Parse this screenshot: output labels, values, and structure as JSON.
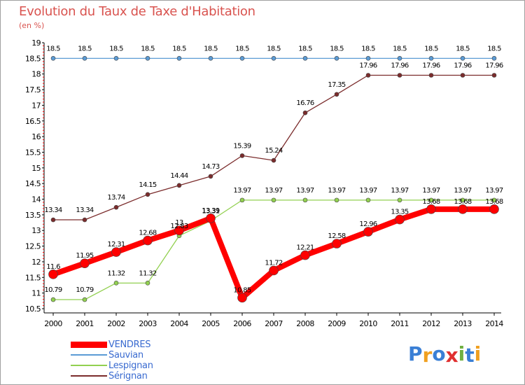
{
  "header": {
    "title": "Evolution du Taux de Taxe d'Habitation",
    "unit": "(en %)"
  },
  "chart_data": {
    "type": "line",
    "title": "Evolution du Taux de Taxe d'Habitation",
    "ylabel": "(en %)",
    "xlabel": "",
    "x": [
      "2000",
      "2001",
      "2002",
      "2003",
      "2004",
      "2005",
      "2006",
      "2007",
      "2008",
      "2009",
      "2010",
      "2011",
      "2012",
      "2013",
      "2014"
    ],
    "yticks": [
      "10.5",
      "11",
      "11.5",
      "12",
      "12.5",
      "13",
      "13.5",
      "14",
      "14.5",
      "15",
      "15.5",
      "16",
      "16.5",
      "17",
      "17.5",
      "18",
      "18.5",
      "19"
    ],
    "ylim": [
      10.5,
      19
    ],
    "grid": false,
    "legend_position": "bottom-left",
    "series": [
      {
        "name": "VENDRES",
        "color": "#ff0000",
        "values": [
          11.6,
          11.95,
          12.31,
          12.68,
          13,
          13.39,
          10.85,
          11.72,
          12.21,
          12.58,
          12.96,
          13.35,
          13.68,
          13.68,
          13.68
        ],
        "labels": [
          "11.6",
          "11.95",
          "12.31",
          "12.68",
          "13",
          "13.39",
          "10.85",
          "11.72",
          "12.21",
          "12.58",
          "12.96",
          "13.35",
          "13.68",
          "13.68",
          "13.68"
        ]
      },
      {
        "name": "Sauvian",
        "color": "#5b9bd5",
        "values": [
          18.5,
          18.5,
          18.5,
          18.5,
          18.5,
          18.5,
          18.5,
          18.5,
          18.5,
          18.5,
          18.5,
          18.5,
          18.5,
          18.5,
          18.5
        ],
        "labels": [
          "18.5",
          "18.5",
          "18.5",
          "18.5",
          "18.5",
          "18.5",
          "18.5",
          "18.5",
          "18.5",
          "18.5",
          "18.5",
          "18.5",
          "18.5",
          "18.5",
          "18.5"
        ]
      },
      {
        "name": "Lespignan",
        "color": "#92d050",
        "values": [
          10.79,
          10.79,
          11.32,
          11.32,
          12.83,
          13.31,
          13.97,
          13.97,
          13.97,
          13.97,
          13.97,
          13.97,
          13.97,
          13.97,
          13.97
        ],
        "labels": [
          "10.79",
          "10.79",
          "11.32",
          "11.32",
          "12.83",
          "13.31",
          "13.97",
          "13.97",
          "13.97",
          "13.97",
          "13.97",
          "13.97",
          "13.97",
          "13.97",
          "13.97"
        ]
      },
      {
        "name": "Sérignan",
        "color": "#7b2c2c",
        "values": [
          13.34,
          13.34,
          13.74,
          14.15,
          14.44,
          14.73,
          15.39,
          15.24,
          16.76,
          17.35,
          17.96,
          17.96,
          17.96,
          17.96,
          17.96
        ],
        "labels": [
          "13.34",
          "13.34",
          "13.74",
          "14.15",
          "14.44",
          "14.73",
          "15.39",
          "15.24",
          "16.76",
          "17.35",
          "17.96",
          "17.96",
          "17.96",
          "17.96",
          "17.96"
        ]
      }
    ]
  },
  "logo": {
    "text": "Proxiti",
    "letters": [
      "P",
      "r",
      "o",
      "x",
      "i",
      "t",
      "i"
    ],
    "colors": [
      "#3a7fd5",
      "#f0a020",
      "#3a7fd5",
      "#e03030",
      "#70b040",
      "#3a7fd5",
      "#f0a020"
    ]
  }
}
